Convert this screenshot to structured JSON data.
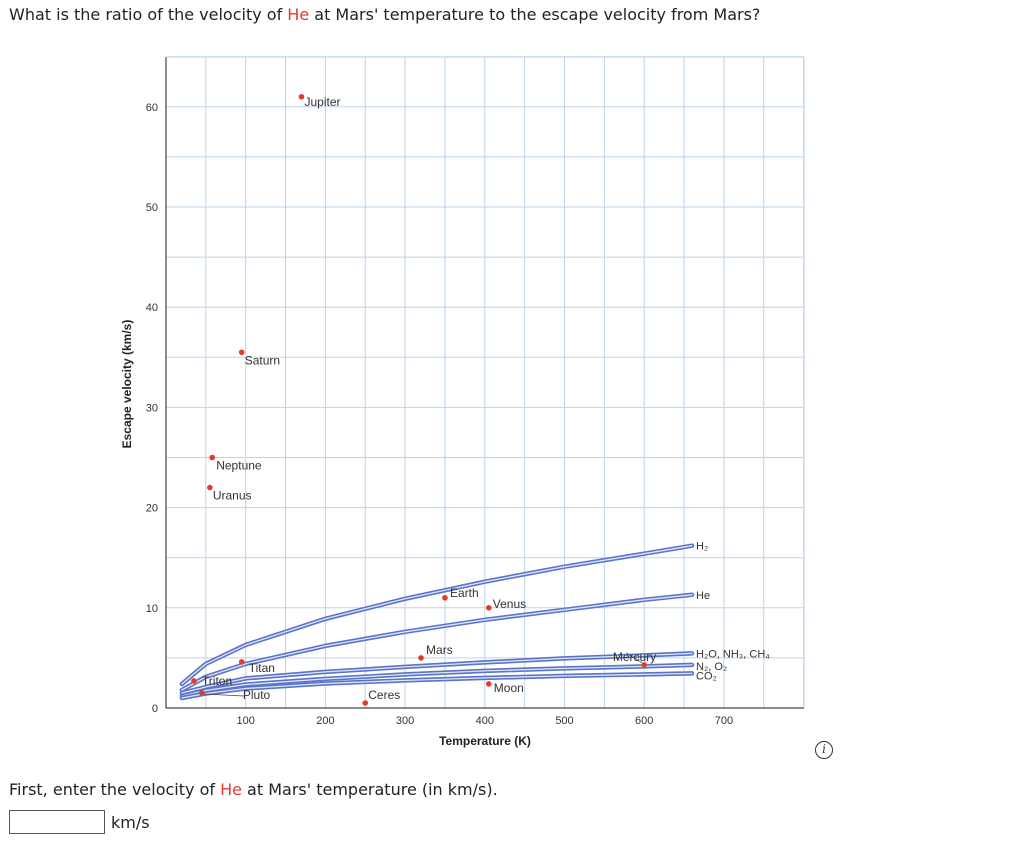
{
  "question": {
    "prefix": "What is the ratio of the velocity of ",
    "highlight": "He",
    "suffix": " at Mars' temperature to the escape velocity from Mars?"
  },
  "colors": {
    "highlight": "#e23b2e",
    "curve": "#5b74c9",
    "curve_fill": "#dfe6f8",
    "grid": "#bcd3ee",
    "point": "#e23b2e"
  },
  "chart_data": {
    "type": "scatter",
    "xlabel": "Temperature (K)",
    "ylabel": "Escape velocity (km/s)",
    "xlim": [
      0,
      700
    ],
    "ylim": [
      0,
      60
    ],
    "x_ticks": [
      100,
      200,
      300,
      400,
      500,
      600,
      700
    ],
    "y_ticks": [
      0,
      10,
      20,
      30,
      40,
      50,
      60
    ],
    "grid": true,
    "points": [
      {
        "name": "Jupiter",
        "x": 170,
        "y": 61
      },
      {
        "name": "Saturn",
        "x": 95,
        "y": 35.5
      },
      {
        "name": "Neptune",
        "x": 58,
        "y": 25
      },
      {
        "name": "Uranus",
        "x": 55,
        "y": 22
      },
      {
        "name": "Earth",
        "x": 350,
        "y": 11
      },
      {
        "name": "Venus",
        "x": 405,
        "y": 10
      },
      {
        "name": "Mars",
        "x": 320,
        "y": 5
      },
      {
        "name": "Moon",
        "x": 405,
        "y": 2.4
      },
      {
        "name": "Ceres",
        "x": 250,
        "y": 0.5
      },
      {
        "name": "Mercury",
        "x": 600,
        "y": 4.3
      },
      {
        "name": "Titan",
        "x": 95,
        "y": 4.6
      },
      {
        "name": "Triton",
        "x": 35,
        "y": 2.7
      },
      {
        "name": "Pluto",
        "x": 45,
        "y": 1.5
      }
    ],
    "series": [
      {
        "name": "H₂",
        "x": [
          20,
          50,
          100,
          200,
          300,
          400,
          500,
          600,
          660
        ],
        "y": [
          2.4,
          4.4,
          6.3,
          8.9,
          10.9,
          12.6,
          14.1,
          15.4,
          16.2
        ]
      },
      {
        "name": "He",
        "x": [
          20,
          50,
          100,
          200,
          300,
          400,
          500,
          600,
          660
        ],
        "y": [
          1.8,
          3.1,
          4.4,
          6.2,
          7.6,
          8.8,
          9.8,
          10.8,
          11.3
        ]
      },
      {
        "name": "H₂O, NH₃, CH₄",
        "x": [
          20,
          50,
          100,
          200,
          300,
          400,
          500,
          600,
          660
        ],
        "y": [
          1.5,
          2.1,
          2.95,
          3.6,
          4.1,
          4.55,
          4.95,
          5.25,
          5.45
        ]
      },
      {
        "name": "N₂, O₂",
        "x": [
          20,
          50,
          100,
          200,
          300,
          400,
          500,
          600,
          660
        ],
        "y": [
          1.2,
          1.75,
          2.35,
          2.9,
          3.35,
          3.7,
          3.95,
          4.15,
          4.3
        ]
      },
      {
        "name": "CO₂",
        "x": [
          20,
          50,
          100,
          200,
          300,
          400,
          500,
          600,
          660
        ],
        "y": [
          1.0,
          1.45,
          1.95,
          2.45,
          2.75,
          3.0,
          3.2,
          3.35,
          3.45
        ]
      }
    ]
  },
  "prompt": {
    "prefix": "First, enter the velocity of ",
    "highlight": "He",
    "suffix": " at Mars' temperature (in km/s)."
  },
  "answer": {
    "value": "",
    "unit": "km/s"
  },
  "info_icon": {
    "glyph": "i",
    "icon": "info-icon"
  }
}
